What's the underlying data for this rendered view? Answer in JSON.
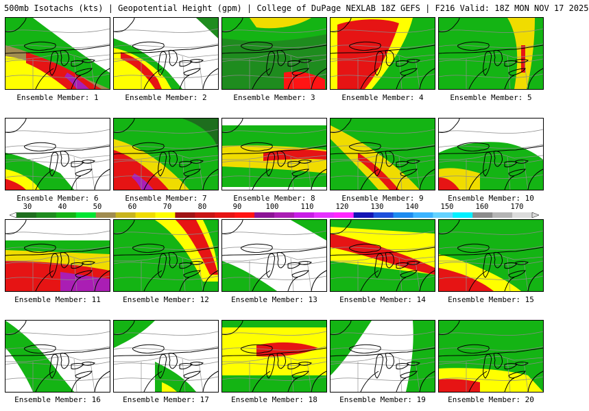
{
  "header": {
    "title": "500mb Isotachs (kts) | Geopotential Height (gpm) | College of DuPage NEXLAB   18Z GEFS | F216 Valid: 18Z MON NOV 17 2025"
  },
  "panels": [
    {
      "label": "Ensemble Member: 1"
    },
    {
      "label": "Ensemble Member: 2"
    },
    {
      "label": "Ensemble Member: 3"
    },
    {
      "label": "Ensemble Member: 4"
    },
    {
      "label": "Ensemble Member: 5"
    },
    {
      "label": "Ensemble Member: 6"
    },
    {
      "label": "Ensemble Member: 7"
    },
    {
      "label": "Ensemble Member: 8"
    },
    {
      "label": "Ensemble Member: 9"
    },
    {
      "label": "Ensemble Member: 10"
    },
    {
      "label": "Ensemble Member: 11"
    },
    {
      "label": "Ensemble Member: 12"
    },
    {
      "label": "Ensemble Member: 13"
    },
    {
      "label": "Ensemble Member: 14"
    },
    {
      "label": "Ensemble Member: 15"
    },
    {
      "label": "Ensemble Member: 16"
    },
    {
      "label": "Ensemble Member: 17"
    },
    {
      "label": "Ensemble Member: 18"
    },
    {
      "label": "Ensemble Member: 19"
    },
    {
      "label": "Ensemble Member: 20"
    }
  ],
  "colorbar": {
    "ticks": [
      "30",
      "40",
      "50",
      "60",
      "70",
      "80",
      "90",
      "100",
      "110",
      "120",
      "130",
      "140",
      "150",
      "160",
      "170"
    ],
    "colors": [
      "#1e6e1e",
      "#1e8c1e",
      "#14b414",
      "#00e632",
      "#a08c50",
      "#c8b41e",
      "#f0dc00",
      "#ffff00",
      "#a01414",
      "#c81414",
      "#e61414",
      "#ff1414",
      "#8c1496",
      "#aa1eb4",
      "#c81ee6",
      "#e632ff",
      "#ff28ff",
      "#1414b4",
      "#1e50dc",
      "#1e8cf0",
      "#3cb4ff",
      "#64d2ff",
      "#00f0ff",
      "#8c8c8c",
      "#b4b4b4",
      "#dcdcdc"
    ]
  }
}
